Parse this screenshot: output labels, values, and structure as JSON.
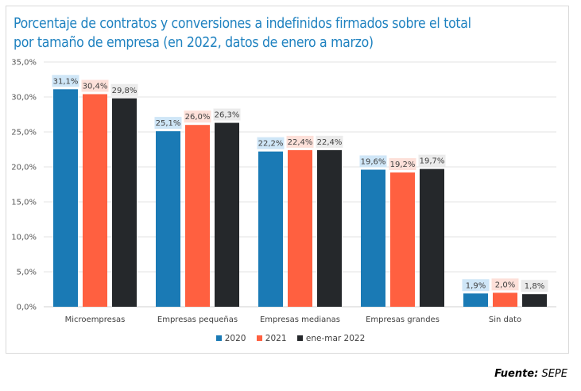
{
  "chart_data": {
    "type": "bar",
    "title": "Porcentaje de contratos y conversiones a indefinidos firmados sobre el total por tamaño de empresa (en 2022, datos de enero a marzo)",
    "title_lines": [
      "Porcentaje de contratos y conversiones a indefinidos firmados sobre el total",
      "por tamaño de empresa (en 2022, datos de enero a marzo)"
    ],
    "categories": [
      "Microempresas",
      "Empresas pequeñas",
      "Empresas medianas",
      "Empresas grandes",
      "Sin dato"
    ],
    "series": [
      {
        "name": "2020",
        "color": "#1a7ab5",
        "label_bg": "#cfe6f7",
        "values": [
          31.1,
          25.1,
          22.2,
          19.6,
          1.9
        ],
        "labels": [
          "31,1%",
          "25,1%",
          "22,2%",
          "19,6%",
          "1,9%"
        ]
      },
      {
        "name": "2021",
        "color": "#ff6040",
        "label_bg": "#fde0d9",
        "values": [
          30.4,
          26.0,
          22.4,
          19.2,
          2.0
        ],
        "labels": [
          "30,4%",
          "26,0%",
          "22,4%",
          "19,2%",
          "2,0%"
        ]
      },
      {
        "name": "ene-mar 2022",
        "color": "#25282b",
        "label_bg": "#ebebeb",
        "values": [
          29.8,
          26.3,
          22.4,
          19.7,
          1.8
        ],
        "labels": [
          "29,8%",
          "26,3%",
          "22,4%",
          "19,7%",
          "1,8%"
        ]
      }
    ],
    "yticks": [
      "0,0%",
      "5,0%",
      "10,0%",
      "15,0%",
      "20,0%",
      "25,0%",
      "30,0%",
      "35,0%"
    ],
    "ylim": [
      0,
      35
    ],
    "xlabel": "",
    "ylabel": "",
    "grid": true,
    "legend_position": "bottom"
  },
  "legend": [
    {
      "label": "2020",
      "color": "#1a7ab5"
    },
    {
      "label": "2021",
      "color": "#ff6040"
    },
    {
      "label": "ene-mar 2022",
      "color": "#25282b"
    }
  ],
  "source": {
    "label": "Fuente:",
    "value": "SEPE"
  }
}
